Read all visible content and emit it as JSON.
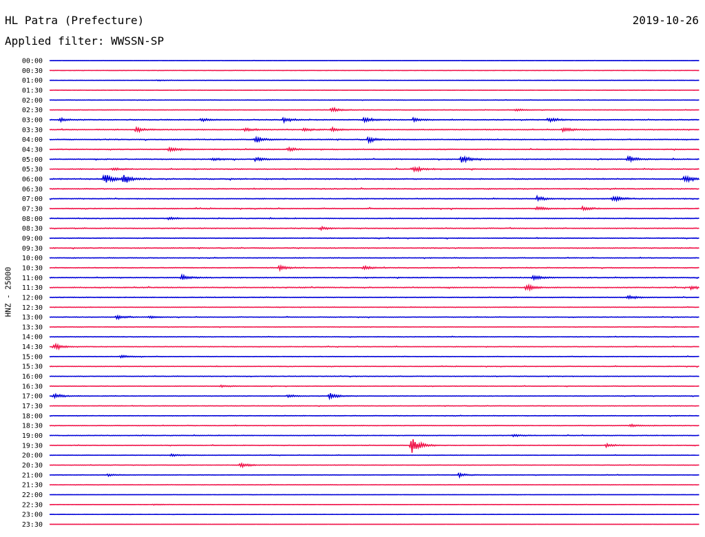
{
  "header": {
    "station": "HL Patra (Prefecture)",
    "date": "2019-10-26",
    "filter": "Applied filter: WWSSN-SP"
  },
  "colors": {
    "odd_row": "#0000d8",
    "even_row": "#f0144a"
  },
  "chart_data": {
    "type": "line",
    "title": "HL Patra (Prefecture)",
    "ylabel": "HNZ - 25000",
    "xlabel": "",
    "row_labels": [
      "00:00",
      "00:30",
      "01:00",
      "01:30",
      "02:00",
      "02:30",
      "03:00",
      "03:30",
      "04:00",
      "04:30",
      "05:00",
      "05:30",
      "06:00",
      "06:30",
      "07:00",
      "07:30",
      "08:00",
      "08:30",
      "09:00",
      "09:30",
      "10:00",
      "10:30",
      "11:00",
      "11:30",
      "12:00",
      "12:30",
      "13:00",
      "13:30",
      "14:00",
      "14:30",
      "15:00",
      "15:30",
      "16:00",
      "16:30",
      "17:00",
      "17:30",
      "18:00",
      "18:30",
      "19:00",
      "19:30",
      "20:00",
      "20:30",
      "21:00",
      "21:30",
      "22:00",
      "22:30",
      "23:00",
      "23:30"
    ],
    "row_minutes": 30,
    "series_colors": [
      "#0000d8",
      "#f0144a"
    ],
    "noise_level": [
      0.1,
      0.12,
      0.12,
      0.14,
      0.18,
      0.22,
      0.45,
      0.4,
      0.45,
      0.45,
      0.45,
      0.5,
      0.55,
      0.5,
      0.4,
      0.45,
      0.4,
      0.4,
      0.4,
      0.45,
      0.35,
      0.4,
      0.4,
      0.45,
      0.4,
      0.3,
      0.3,
      0.28,
      0.28,
      0.3,
      0.28,
      0.3,
      0.28,
      0.3,
      0.28,
      0.28,
      0.3,
      0.3,
      0.3,
      0.3,
      0.22,
      0.22,
      0.2,
      0.18,
      0.12,
      0.12,
      0.1,
      0.1
    ],
    "events": [
      {
        "row": 2,
        "min": 5.0,
        "amp": 0.3
      },
      {
        "row": 5,
        "min": 13.0,
        "amp": 1.0
      },
      {
        "row": 5,
        "min": 21.5,
        "amp": 0.5
      },
      {
        "row": 6,
        "min": 0.5,
        "amp": 0.7
      },
      {
        "row": 6,
        "min": 7.0,
        "amp": 0.7
      },
      {
        "row": 6,
        "min": 10.8,
        "amp": 0.8
      },
      {
        "row": 6,
        "min": 14.5,
        "amp": 1.2
      },
      {
        "row": 6,
        "min": 16.8,
        "amp": 0.8
      },
      {
        "row": 6,
        "min": 23.0,
        "amp": 1.0
      },
      {
        "row": 7,
        "min": 4.0,
        "amp": 1.0
      },
      {
        "row": 7,
        "min": 9.0,
        "amp": 0.8
      },
      {
        "row": 7,
        "min": 11.7,
        "amp": 0.8
      },
      {
        "row": 7,
        "min": 13.0,
        "amp": 0.8
      },
      {
        "row": 7,
        "min": 23.7,
        "amp": 1.1
      },
      {
        "row": 8,
        "min": 9.5,
        "amp": 1.2
      },
      {
        "row": 8,
        "min": 14.7,
        "amp": 1.4
      },
      {
        "row": 9,
        "min": 5.5,
        "amp": 1.0
      },
      {
        "row": 9,
        "min": 11.0,
        "amp": 0.8
      },
      {
        "row": 10,
        "min": 7.5,
        "amp": 0.6
      },
      {
        "row": 10,
        "min": 9.5,
        "amp": 0.8
      },
      {
        "row": 10,
        "min": 19.0,
        "amp": 1.6
      },
      {
        "row": 10,
        "min": 26.7,
        "amp": 1.3
      },
      {
        "row": 11,
        "min": 2.9,
        "amp": 0.6
      },
      {
        "row": 11,
        "min": 16.8,
        "amp": 1.3
      },
      {
        "row": 12,
        "min": 2.5,
        "amp": 2.2
      },
      {
        "row": 12,
        "min": 3.4,
        "amp": 2.0
      },
      {
        "row": 12,
        "min": 29.3,
        "amp": 1.3
      },
      {
        "row": 14,
        "min": 26.0,
        "amp": 1.3
      },
      {
        "row": 14,
        "min": 22.5,
        "amp": 0.9
      },
      {
        "row": 15,
        "min": 24.6,
        "amp": 1.0
      },
      {
        "row": 15,
        "min": 22.5,
        "amp": 0.8
      },
      {
        "row": 16,
        "min": 5.5,
        "amp": 0.6
      },
      {
        "row": 17,
        "min": 12.5,
        "amp": 0.6
      },
      {
        "row": 21,
        "min": 10.6,
        "amp": 1.0
      },
      {
        "row": 21,
        "min": 14.5,
        "amp": 0.8
      },
      {
        "row": 22,
        "min": 6.1,
        "amp": 1.1
      },
      {
        "row": 22,
        "min": 22.3,
        "amp": 1.0
      },
      {
        "row": 23,
        "min": 22.0,
        "amp": 1.4
      },
      {
        "row": 23,
        "min": 29.6,
        "amp": 0.9
      },
      {
        "row": 24,
        "min": 26.7,
        "amp": 0.8
      },
      {
        "row": 26,
        "min": 3.1,
        "amp": 0.9
      },
      {
        "row": 26,
        "min": 4.6,
        "amp": 0.5
      },
      {
        "row": 29,
        "min": 0.2,
        "amp": 1.3
      },
      {
        "row": 30,
        "min": 3.3,
        "amp": 0.6
      },
      {
        "row": 33,
        "min": 7.9,
        "amp": 0.5
      },
      {
        "row": 34,
        "min": 0.2,
        "amp": 1.0
      },
      {
        "row": 34,
        "min": 12.9,
        "amp": 1.4
      },
      {
        "row": 34,
        "min": 11.0,
        "amp": 0.6
      },
      {
        "row": 37,
        "min": 26.8,
        "amp": 0.6
      },
      {
        "row": 38,
        "min": 21.4,
        "amp": 0.6
      },
      {
        "row": 39,
        "min": 16.7,
        "amp": 3.6
      },
      {
        "row": 39,
        "min": 25.7,
        "amp": 0.7
      },
      {
        "row": 40,
        "min": 5.6,
        "amp": 0.5
      },
      {
        "row": 41,
        "min": 8.8,
        "amp": 1.0
      },
      {
        "row": 42,
        "min": 2.7,
        "amp": 0.5
      },
      {
        "row": 42,
        "min": 18.9,
        "amp": 0.8
      },
      {
        "row": 45,
        "min": 4.8,
        "amp": 0.3
      }
    ]
  }
}
